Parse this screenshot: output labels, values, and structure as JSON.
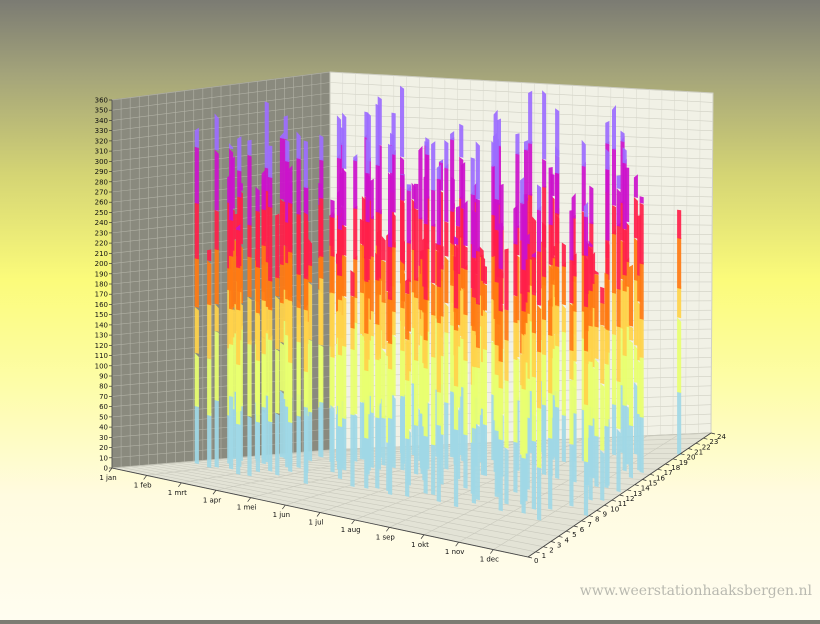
{
  "chart_data": {
    "type": "3d-surface",
    "title": "",
    "z_axis": {
      "label": "",
      "range": [
        0,
        360
      ],
      "ticks": [
        0,
        10,
        20,
        30,
        40,
        50,
        60,
        70,
        80,
        90,
        100,
        110,
        120,
        130,
        140,
        150,
        160,
        170,
        180,
        190,
        200,
        210,
        220,
        230,
        240,
        250,
        260,
        270,
        280,
        290,
        300,
        310,
        320,
        330,
        340,
        350,
        360
      ]
    },
    "x_axis": {
      "label": "",
      "tick_labels": [
        "1 jan",
        "1 feb",
        "1 mrt",
        "1 apr",
        "1 mei",
        "1 jun",
        "1 jul",
        "1 aug",
        "1 sep",
        "1 okt",
        "1 nov",
        "1 dec"
      ]
    },
    "y_axis": {
      "label": "",
      "range": [
        0,
        24
      ],
      "ticks": [
        0,
        1,
        2,
        3,
        4,
        5,
        6,
        7,
        8,
        9,
        10,
        11,
        12,
        13,
        14,
        15,
        16,
        17,
        18,
        19,
        20,
        21,
        22,
        23,
        24
      ]
    },
    "color_bands": [
      {
        "upto": 60,
        "color": "#9fd8e6"
      },
      {
        "upto": 120,
        "color": "#e8ff70"
      },
      {
        "upto": 160,
        "color": "#ffd24a"
      },
      {
        "upto": 200,
        "color": "#ff7a12"
      },
      {
        "upto": 250,
        "color": "#ff1f4a"
      },
      {
        "upto": 300,
        "color": "#cc11cc"
      },
      {
        "upto": 360,
        "color": "#9c6cff"
      }
    ],
    "back_wall_color": "#8a8a7e",
    "grid": true
  },
  "watermark": "www.weerstationhaaksbergen.nl"
}
